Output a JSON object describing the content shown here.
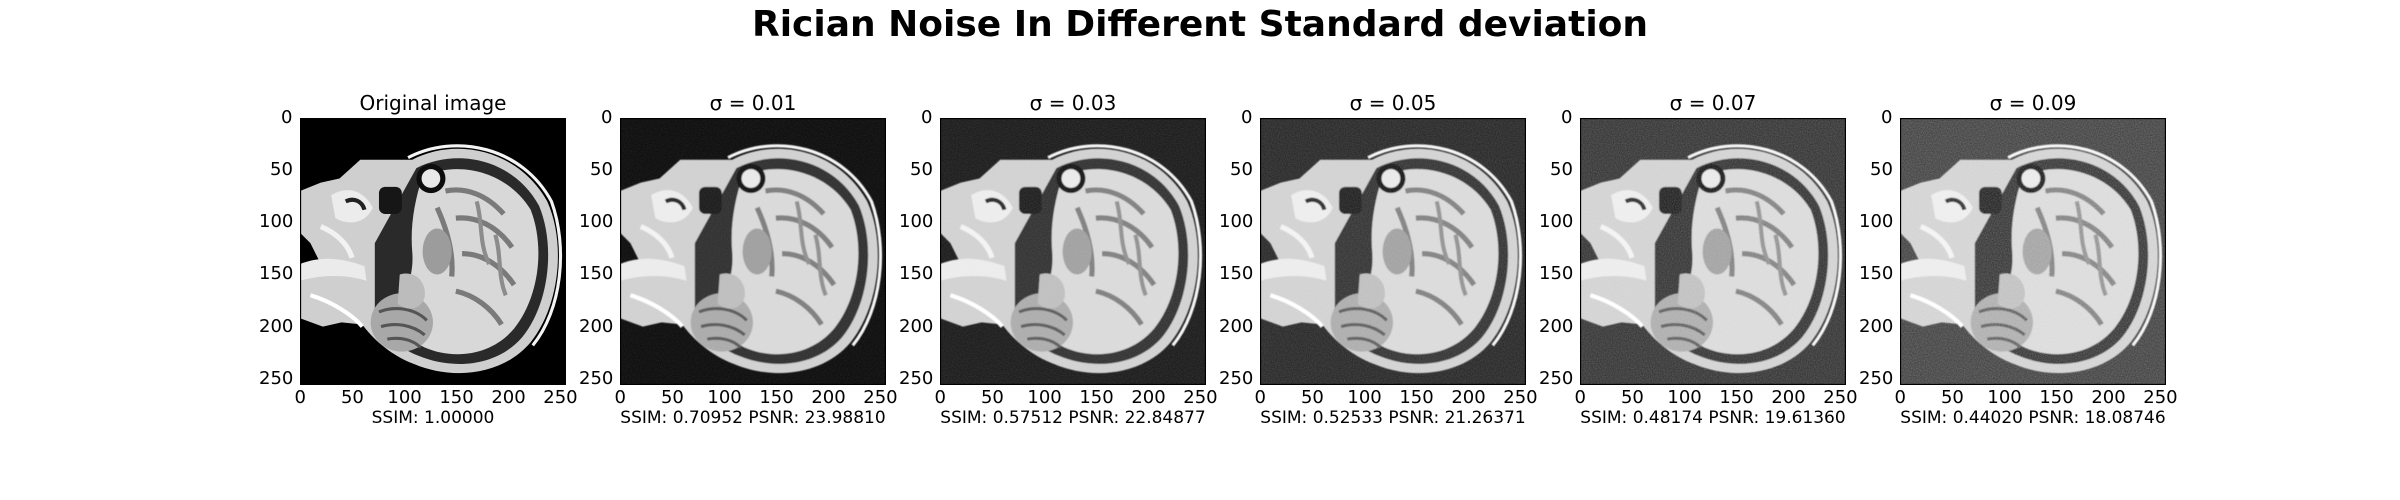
{
  "figure": {
    "suptitle": "Rician Noise In Different Standard deviation",
    "axis_ticks": {
      "x": [
        "0",
        "50",
        "100",
        "150",
        "200",
        "250"
      ],
      "y": [
        "0",
        "50",
        "100",
        "150",
        "200",
        "250"
      ]
    },
    "panels": [
      {
        "title": "Original image",
        "label": "SSIM: 1.00000",
        "noise_level": 0.0
      },
      {
        "title": "σ = 0.01",
        "label": "SSIM: 0.70952 PSNR: 23.98810",
        "noise_level": 0.01
      },
      {
        "title": "σ = 0.03",
        "label": "SSIM: 0.57512 PSNR: 22.84877",
        "noise_level": 0.03
      },
      {
        "title": "σ = 0.05",
        "label": "SSIM: 0.52533 PSNR: 21.26371",
        "noise_level": 0.05
      },
      {
        "title": "σ = 0.07",
        "label": "SSIM: 0.48174 PSNR: 19.61360",
        "noise_level": 0.07
      },
      {
        "title": "σ = 0.09",
        "label": "SSIM: 0.44020 PSNR: 18.08746",
        "noise_level": 0.09
      }
    ],
    "colors": {
      "background": "#000000",
      "tissue_light": "#e6e6e6",
      "tissue_mid": "#9a9a9a",
      "tissue_dark": "#3a3a3a"
    }
  }
}
